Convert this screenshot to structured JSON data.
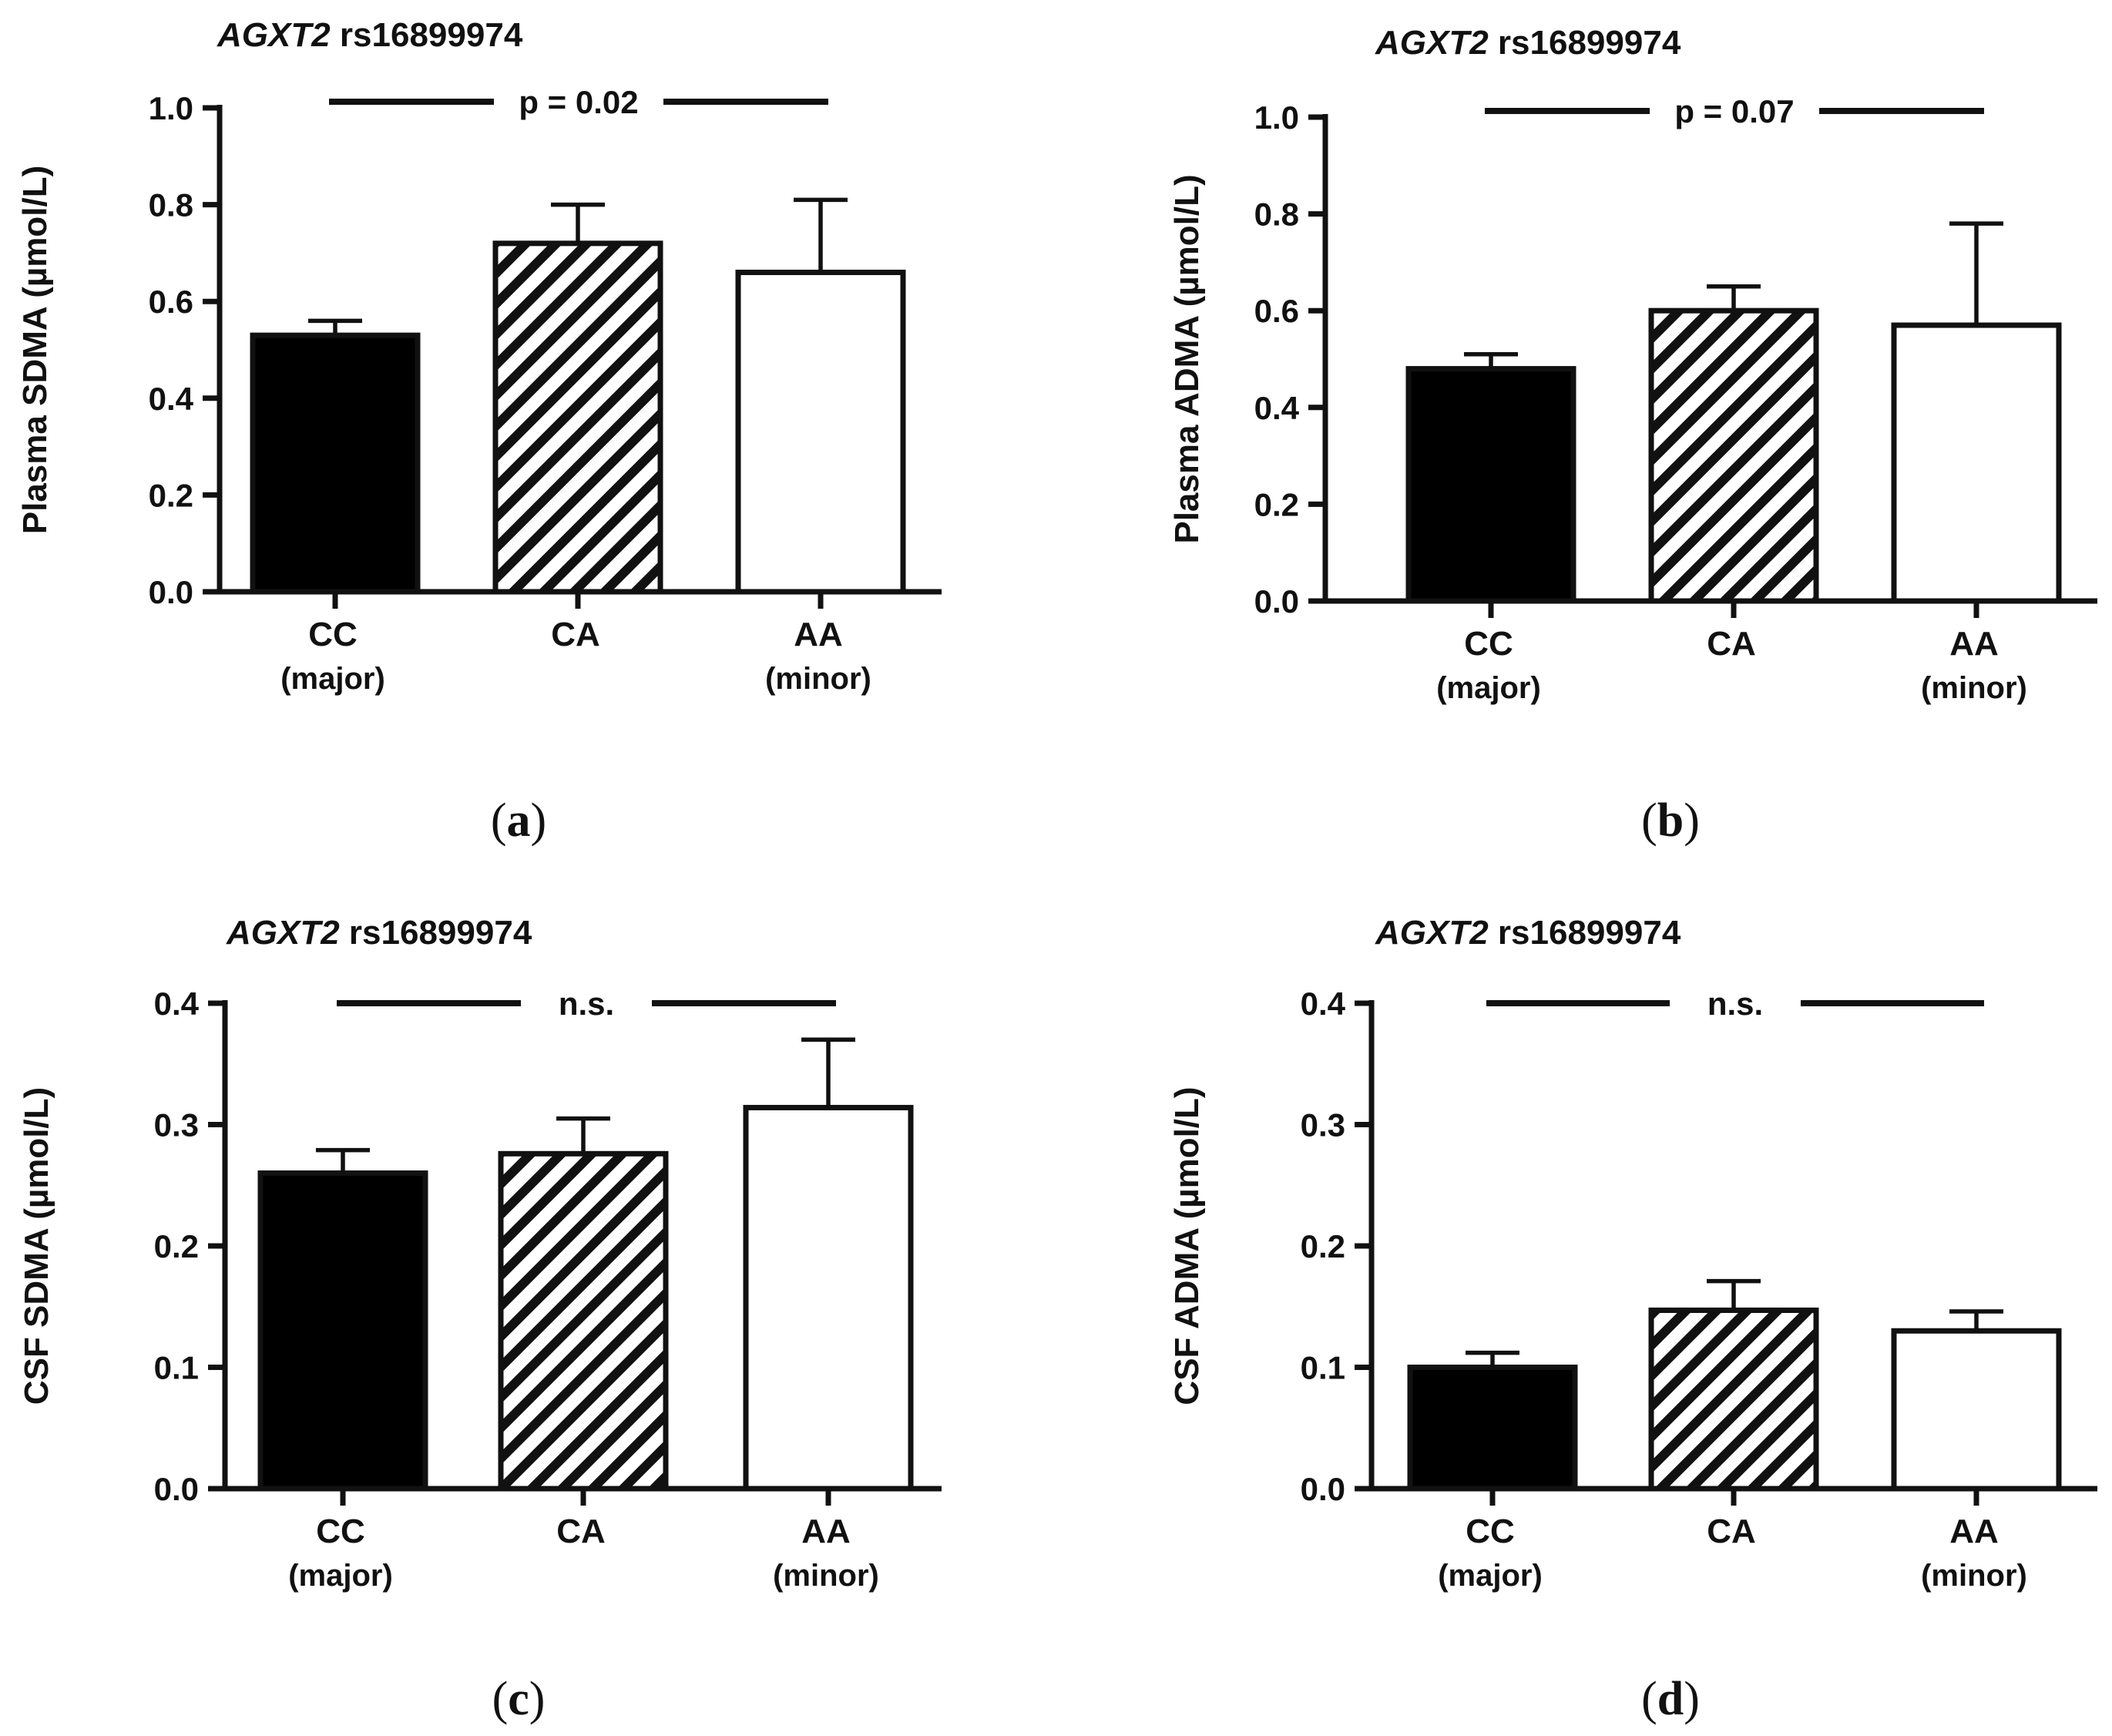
{
  "figure": {
    "panel_letters": [
      "(a)",
      "(b)",
      "(c)",
      "(d)"
    ]
  },
  "colors": {
    "axis": "#111111",
    "bar_fill_solid": "#000000",
    "bar_fill_open": "#ffffff",
    "hatch": "#111111"
  },
  "chart_data": [
    {
      "type": "bar",
      "title_gene": "AGXT2",
      "title_snp": "rs16899974",
      "ylabel": "Plasma SDMA (µmol/L)",
      "categories": [
        "CC",
        "CA",
        "AA"
      ],
      "category_sublabels": [
        "(major)",
        "",
        "(minor)"
      ],
      "values": [
        0.53,
        0.72,
        0.66
      ],
      "errors": [
        0.03,
        0.08,
        0.15
      ],
      "fills": [
        "solid",
        "hatched",
        "open"
      ],
      "ylim": [
        0,
        1.0
      ],
      "yticks": [
        "0.0",
        "0.2",
        "0.4",
        "0.6",
        "0.8",
        "1.0"
      ],
      "significance": {
        "label": "p = 0.02",
        "value": 1.0,
        "from": 0,
        "to": 2
      },
      "panel": "(a)"
    },
    {
      "type": "bar",
      "title_gene": "AGXT2",
      "title_snp": "rs16899974",
      "ylabel": "Plasma ADMA (µmol/L)",
      "categories": [
        "CC",
        "CA",
        "AA"
      ],
      "category_sublabels": [
        "(major)",
        "",
        "(minor)"
      ],
      "values": [
        0.48,
        0.6,
        0.57
      ],
      "errors": [
        0.03,
        0.05,
        0.21
      ],
      "fills": [
        "solid",
        "hatched",
        "open"
      ],
      "ylim": [
        0,
        1.0
      ],
      "yticks": [
        "0.0",
        "0.2",
        "0.4",
        "0.6",
        "0.8",
        "1.0"
      ],
      "significance": {
        "label": "p = 0.07",
        "value": 1.0,
        "from": 0,
        "to": 2
      },
      "panel": "(b)"
    },
    {
      "type": "bar",
      "title_gene": "AGXT2",
      "title_snp": "rs16899974",
      "ylabel": "CSF SDMA (µmol/L)",
      "categories": [
        "CC",
        "CA",
        "AA"
      ],
      "category_sublabels": [
        "(major)",
        "",
        "(minor)"
      ],
      "values": [
        0.26,
        0.276,
        0.314
      ],
      "errors": [
        0.019,
        0.029,
        0.056
      ],
      "fills": [
        "solid",
        "hatched",
        "open"
      ],
      "ylim": [
        0,
        0.4
      ],
      "yticks": [
        "0.0",
        "0.1",
        "0.2",
        "0.3",
        "0.4"
      ],
      "significance": {
        "label": "n.s.",
        "value": 0.4,
        "from": 0,
        "to": 2
      },
      "panel": "(c)"
    },
    {
      "type": "bar",
      "title_gene": "AGXT2",
      "title_snp": "rs16899974",
      "ylabel": "CSF ADMA (µmol/L)",
      "categories": [
        "CC",
        "CA",
        "AA"
      ],
      "category_sublabels": [
        "(major)",
        "",
        "(minor)"
      ],
      "values": [
        0.1,
        0.147,
        0.13
      ],
      "errors": [
        0.012,
        0.024,
        0.016
      ],
      "fills": [
        "solid",
        "hatched",
        "open"
      ],
      "ylim": [
        0,
        0.4
      ],
      "yticks": [
        "0.0",
        "0.1",
        "0.2",
        "0.3",
        "0.4"
      ],
      "significance": {
        "label": "n.s.",
        "value": 0.4,
        "from": 0,
        "to": 2
      },
      "panel": "(d)"
    }
  ]
}
